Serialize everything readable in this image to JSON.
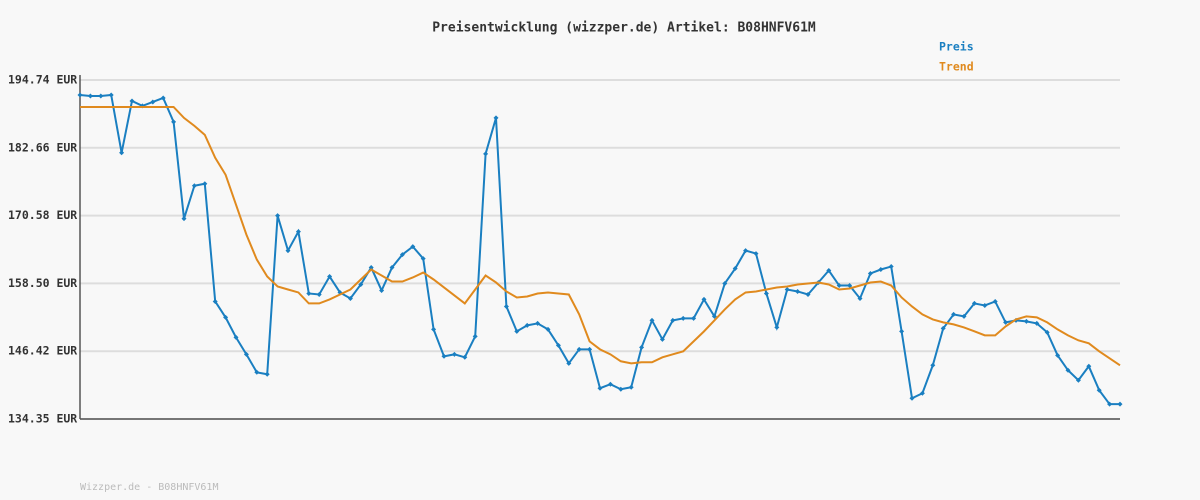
{
  "chart_data": {
    "type": "line",
    "title": "Preisentwicklung (wizzper.de) Artikel: B08HNFV61M",
    "footer": "Wizzper.de - B08HNFV61M",
    "ylim": [
      134.35,
      194.74
    ],
    "yticks": [
      {
        "value": 134.35,
        "label": "134.35 EUR"
      },
      {
        "value": 146.42,
        "label": "146.42 EUR"
      },
      {
        "value": 158.5,
        "label": "158.50 EUR"
      },
      {
        "value": 170.58,
        "label": "170.58 EUR"
      },
      {
        "value": 182.66,
        "label": "182.66 EUR"
      },
      {
        "value": 194.74,
        "label": "194.74 EUR"
      }
    ],
    "grid": true,
    "legend": "top-right",
    "series": [
      {
        "name": "Preis",
        "color": "#1a7fc1",
        "markers": true,
        "values": [
          192.07,
          191.9,
          191.9,
          192.07,
          181.77,
          191.01,
          190.12,
          190.83,
          191.54,
          187.28,
          170.04,
          175.9,
          176.26,
          155.29,
          152.45,
          148.89,
          145.87,
          142.67,
          142.32,
          170.57,
          164.35,
          167.73,
          156.71,
          156.53,
          159.73,
          156.89,
          155.82,
          158.31,
          161.33,
          157.25,
          161.33,
          163.64,
          165.06,
          162.93,
          150.31,
          145.52,
          145.87,
          145.34,
          149.07,
          181.59,
          187.99,
          154.4,
          149.96,
          151.03,
          151.38,
          150.31,
          147.47,
          144.27,
          146.76,
          146.76,
          139.83,
          140.54,
          139.65,
          140.01,
          147.12,
          151.91,
          148.54,
          151.91,
          152.27,
          152.27,
          155.65,
          152.63,
          158.49,
          161.15,
          164.35,
          163.82,
          156.71,
          150.67,
          157.42,
          157.07,
          156.53,
          158.67,
          160.8,
          158.13,
          158.13,
          155.82,
          160.27,
          160.98,
          161.51,
          149.96,
          138.05,
          138.94,
          143.92,
          150.49,
          152.98,
          152.63,
          154.94,
          154.58,
          155.29,
          151.56,
          151.91,
          151.74,
          151.38,
          149.78,
          145.69,
          143.03,
          141.25,
          143.74,
          139.48,
          136.99,
          136.99
        ]
      },
      {
        "name": "Trend",
        "color": "#e08a1e",
        "markers": false,
        "values": [
          189.94,
          189.94,
          189.94,
          189.94,
          189.94,
          189.94,
          189.94,
          189.94,
          189.94,
          189.94,
          187.99,
          186.57,
          184.97,
          180.88,
          177.86,
          172.53,
          167.2,
          162.75,
          159.73,
          157.96,
          157.42,
          156.89,
          154.94,
          154.94,
          155.65,
          156.53,
          157.42,
          159.2,
          160.98,
          159.91,
          158.84,
          158.84,
          159.56,
          160.44,
          159.2,
          157.78,
          156.36,
          154.94,
          157.42,
          159.91,
          158.67,
          157.07,
          156.0,
          156.18,
          156.71,
          156.89,
          156.71,
          156.53,
          152.98,
          148.18,
          146.76,
          145.87,
          144.63,
          144.27,
          144.45,
          144.45,
          145.34,
          145.87,
          146.41,
          148.18,
          149.96,
          151.91,
          153.87,
          155.65,
          156.89,
          157.07,
          157.42,
          157.78,
          157.96,
          158.31,
          158.49,
          158.67,
          158.31,
          157.42,
          157.6,
          158.13,
          158.67,
          158.84,
          158.13,
          156.0,
          154.4,
          152.98,
          152.09,
          151.56,
          151.2,
          150.67,
          149.96,
          149.25,
          149.25,
          150.85,
          152.09,
          152.63,
          152.45,
          151.56,
          150.31,
          149.25,
          148.36,
          147.83,
          146.41,
          145.16,
          143.92
        ]
      }
    ]
  }
}
